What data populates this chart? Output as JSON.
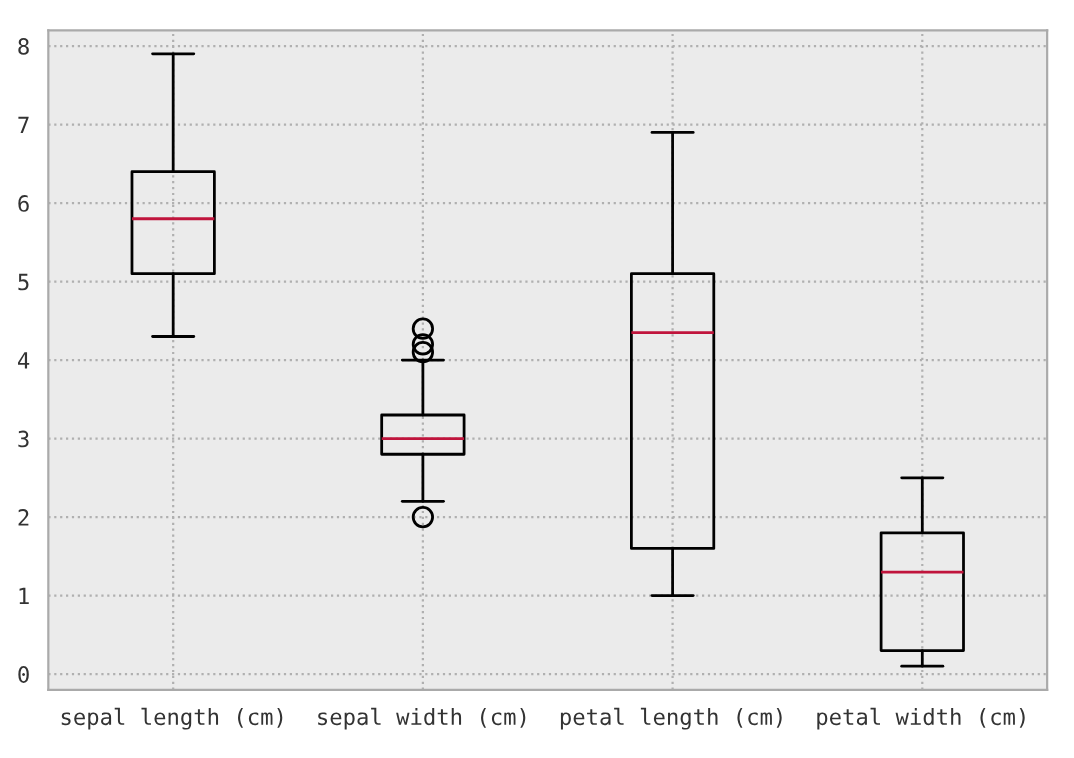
{
  "chart_data": {
    "type": "box",
    "categories": [
      "sepal length (cm)",
      "sepal width (cm)",
      "petal length (cm)",
      "petal width (cm)"
    ],
    "boxes": [
      {
        "low": 4.3,
        "q1": 5.1,
        "median": 5.8,
        "q3": 6.4,
        "high": 7.9
      },
      {
        "low": 2.2,
        "q1": 2.8,
        "median": 3.0,
        "q3": 3.3,
        "high": 4.0,
        "outliers": [
          4.4,
          4.1,
          4.2,
          2.0
        ]
      },
      {
        "low": 1.0,
        "q1": 1.6,
        "median": 4.35,
        "q3": 5.1,
        "high": 6.9
      },
      {
        "low": 0.1,
        "q1": 0.3,
        "median": 1.3,
        "q3": 1.8,
        "high": 2.5
      }
    ],
    "ylim": [
      -0.2,
      8.2
    ],
    "yticks": [
      0,
      1,
      2,
      3,
      4,
      5,
      6,
      7,
      8
    ],
    "grid": true
  }
}
